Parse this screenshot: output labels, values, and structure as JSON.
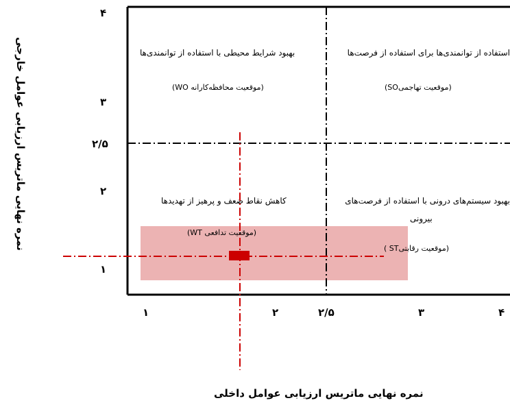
{
  "axes": {
    "x_title": "نمره نهایی ماتریس ارزیابی عوامل داخلی",
    "y_title": "نمره نهایی ماتریس ارزیابی عوامل خارجی",
    "x_ticks": [
      "۱",
      "۲",
      "۲/۵",
      "۳",
      "۴"
    ],
    "y_ticks": [
      "۴",
      "۳",
      "۲/۵",
      "۲",
      "۱"
    ]
  },
  "quadrants": {
    "wo": {
      "strategy": "بهبود شرایط محیطی با استفاده از توانمندی‌ها",
      "position": "(موقعیت محافظه‌کارانه WO)"
    },
    "so": {
      "strategy": "استفاده از توانمندی‌ها برای استفاده از فرصت‌ها",
      "position": "(موقعیت تهاجمیSO)"
    },
    "wt": {
      "strategy": "کاهش نقاط ضعف و پرهیز از تهدیدها",
      "position": "(موقعیت تدافعی WT)"
    },
    "st": {
      "strategy_line1": "بهبود سیستم‌های درونی با استفاده از فرصت‌های",
      "strategy_line2": "بیرونی",
      "position": "(موقعیت رقابتیST )"
    }
  },
  "colors": {
    "frame": "#000000",
    "marker": "#cc0000",
    "range": "#ecb3b3",
    "guide": "#cc0000"
  }
}
